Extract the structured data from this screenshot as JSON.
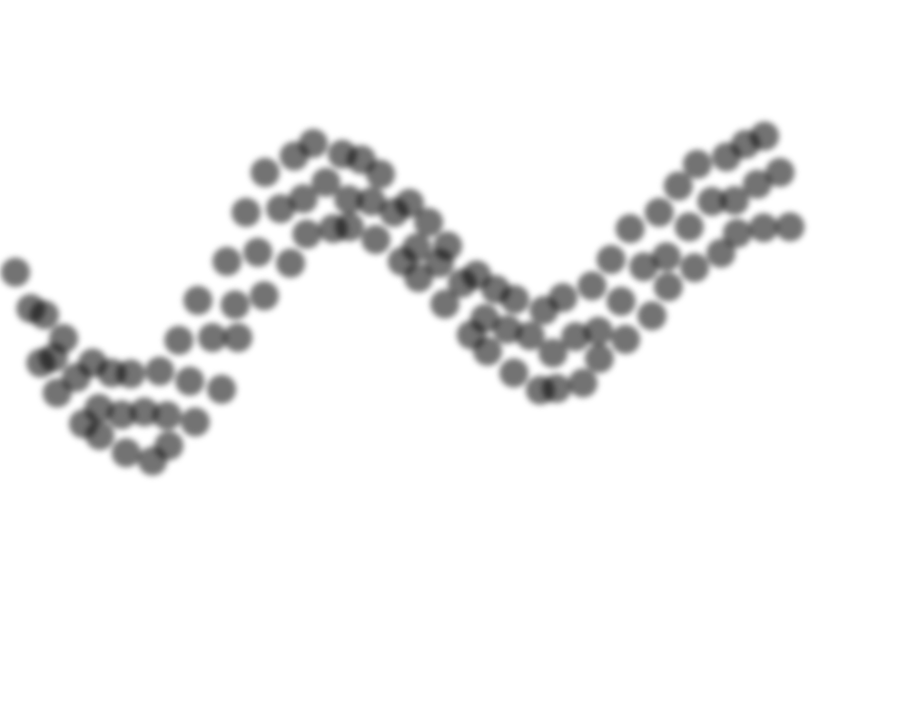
{
  "chart_data": {
    "type": "scatter",
    "x": [
      1.7,
      3.4,
      4.5,
      4.9,
      5.9,
      6.3,
      7.0,
      8.4,
      9.2,
      10.2,
      10.9,
      11.0,
      12.3,
      13.4,
      13.9,
      14.4,
      15.9,
      16.8,
      17.6,
      18.4,
      18.6,
      19.7,
      20.9,
      21.5,
      21.8,
      23.4,
      24.4,
      25.0,
      25.9,
      26.2,
      27.1,
      28.4,
      29.1,
      29.2,
      30.9,
      32.0,
      32.4,
      33.4,
      33.8,
      34.5,
      35.9,
      36.7,
      37.7,
      38.4,
      38.5,
      39.8,
      40.9,
      41.4,
      41.9,
      43.4,
      44.3,
      45.1,
      45.9,
      46.1,
      47.2,
      48.4,
      49.0,
      49.3,
      50.9,
      51.9,
      52.5,
      53.4,
      53.7,
      54.6,
      55.9,
      56.6,
      56.7,
      58.4,
      59.5,
      59.9,
      60.9,
      61.3,
      62.0,
      63.4,
      64.2,
      65.2,
      65.9,
      66.0,
      67.3,
      68.4,
      68.9,
      69.4,
      70.9,
      71.8,
      72.6,
      73.4,
      73.6,
      74.7,
      75.9,
      76.5,
      76.8,
      78.4,
      79.4,
      80.0,
      80.9,
      81.2,
      82.1,
      83.4,
      84.1,
      84.2,
      85.9,
      87.0
    ],
    "values": [
      50.0,
      46.0,
      40.0,
      45.3,
      40.6,
      36.7,
      42.7,
      38.4,
      33.3,
      40.0,
      35.0,
      32.0,
      38.9,
      34.3,
      30.1,
      38.8,
      34.6,
      29.2,
      39.1,
      34.2,
      30.9,
      42.5,
      38.0,
      33.5,
      46.9,
      42.8,
      37.1,
      51.2,
      46.4,
      42.8,
      56.6,
      52.2,
      47.4,
      61.0,
      57.0,
      51.0,
      62.8,
      58.1,
      54.2,
      64.2,
      59.9,
      54.8,
      63.0,
      58.0,
      55.0,
      62.4,
      57.8,
      53.6,
      60.8,
      56.6,
      51.2,
      57.6,
      52.7,
      49.4,
      55.5,
      51.0,
      46.5,
      52.9,
      48.8,
      43.1,
      49.7,
      44.9,
      41.3,
      48.1,
      43.7,
      38.9,
      47.0,
      43.0,
      37.0,
      45.8,
      41.1,
      37.2,
      47.2,
      42.9,
      37.8,
      48.5,
      43.5,
      40.5,
      51.4,
      46.8,
      42.6,
      54.8,
      50.6,
      45.2,
      56.6,
      51.7,
      48.4,
      59.5,
      55.0,
      50.5,
      61.9,
      57.8,
      52.1,
      62.7,
      57.9,
      54.3,
      64.1,
      59.7,
      54.9,
      65.0,
      61.0,
      55.0
    ],
    "color": "#000000",
    "xlim": [
      0,
      100
    ],
    "ylim": [
      0,
      80
    ]
  }
}
